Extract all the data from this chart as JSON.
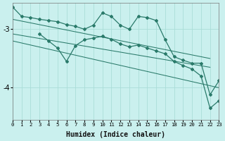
{
  "xlabel": "Humidex (Indice chaleur)",
  "background_color": "#caf0ee",
  "grid_color": "#aaddd8",
  "line_color": "#2a7a6a",
  "xlim": [
    0,
    23
  ],
  "ylim": [
    -4.55,
    -2.55
  ],
  "yticks": [
    -4,
    -3
  ],
  "xticks": [
    0,
    1,
    2,
    3,
    4,
    5,
    6,
    7,
    8,
    9,
    10,
    11,
    12,
    13,
    14,
    15,
    16,
    17,
    18,
    19,
    20,
    21,
    22,
    23
  ],
  "line1_x": [
    0,
    1,
    2,
    3,
    4,
    5,
    6,
    7,
    8,
    9,
    10,
    11,
    12,
    13,
    14,
    15,
    16,
    17,
    18,
    19,
    20,
    21,
    22,
    23
  ],
  "line1_y": [
    -2.62,
    -2.78,
    -2.8,
    -2.83,
    -2.85,
    -2.87,
    -2.92,
    -2.95,
    -3.0,
    -2.93,
    -2.72,
    -2.78,
    -2.93,
    -3.0,
    -2.78,
    -2.8,
    -2.85,
    -3.18,
    -3.47,
    -3.53,
    -3.58,
    -3.58,
    -4.12,
    -3.88
  ],
  "line2_x": [
    3,
    4,
    5,
    6,
    7,
    8,
    9,
    10,
    11,
    12,
    13,
    14,
    15,
    16,
    17,
    18,
    19,
    20,
    21,
    22,
    23
  ],
  "line2_y": [
    -3.08,
    -3.2,
    -3.32,
    -3.55,
    -3.28,
    -3.18,
    -3.15,
    -3.12,
    -3.17,
    -3.25,
    -3.3,
    -3.27,
    -3.32,
    -3.37,
    -3.42,
    -3.55,
    -3.62,
    -3.68,
    -3.8,
    -4.35,
    -4.22
  ],
  "line3_x": [
    0,
    22
  ],
  "line3_y": [
    -2.83,
    -3.5
  ],
  "line4_x": [
    0,
    22
  ],
  "line4_y": [
    -3.08,
    -3.65
  ],
  "line5_x": [
    0,
    23
  ],
  "line5_y": [
    -3.2,
    -4.0
  ]
}
